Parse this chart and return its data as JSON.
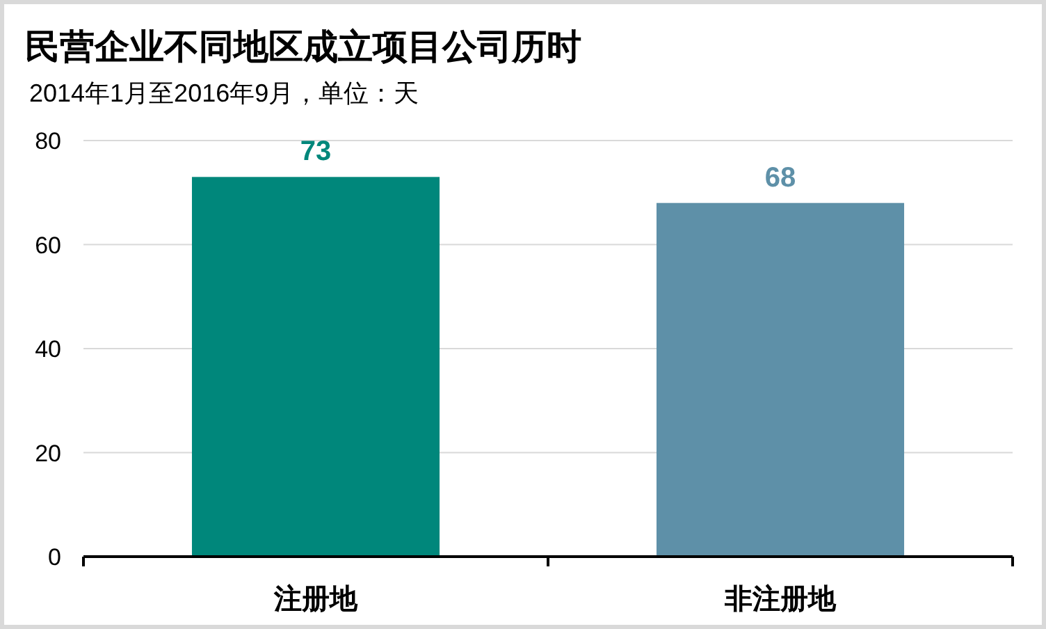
{
  "chart_data": {
    "type": "bar",
    "title": "民营企业不同地区成立项目公司历时",
    "subtitle": "2014年1月至2016年9月，单位：天",
    "categories": [
      "注册地",
      "非注册地"
    ],
    "values": [
      73,
      68
    ],
    "colors": [
      "#00877b",
      "#5e90a8"
    ],
    "ylim": [
      0,
      80
    ],
    "yticks": [
      0,
      20,
      40,
      60,
      80
    ],
    "grid": "y",
    "data_labels": true
  }
}
